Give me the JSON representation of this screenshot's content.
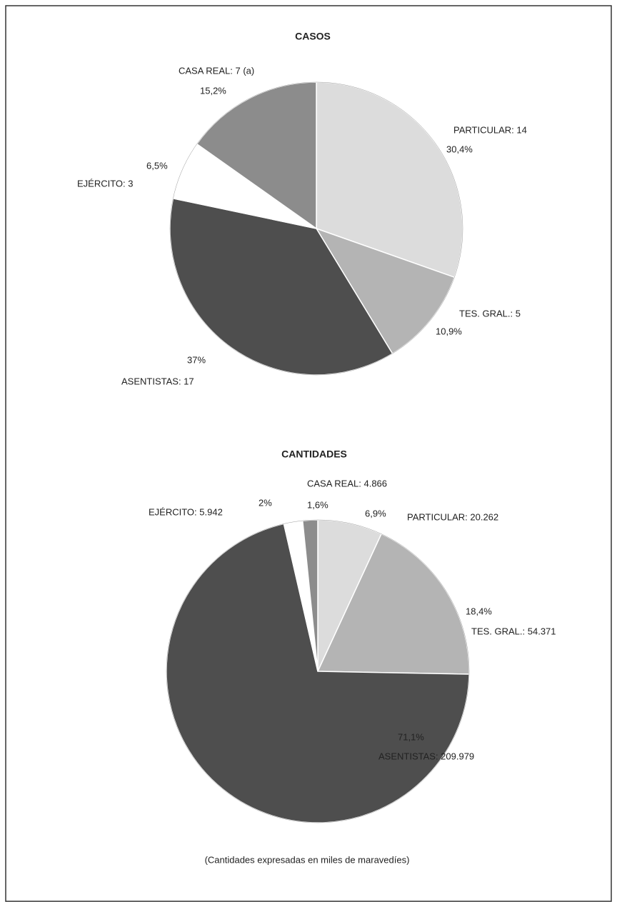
{
  "chart_data": [
    {
      "type": "pie",
      "title": "CASOS",
      "categories": [
        "PARTICULAR: 14",
        "TES. GRAL.: 5",
        "ASENTISTAS: 17",
        "EJÉRCITO: 3",
        "CASA REAL: 7 (a)"
      ],
      "values": [
        30.4,
        10.9,
        37,
        6.5,
        15.2
      ],
      "value_labels": [
        "30,4%",
        "10,9%",
        "37%",
        "6,5%",
        "15,2%"
      ],
      "colors": [
        "#dcdcdc",
        "#b4b4b4",
        "#4e4e4e",
        "#ffffff",
        "#8c8c8c"
      ]
    },
    {
      "type": "pie",
      "title": "CANTIDADES",
      "categories": [
        "PARTICULAR: 20.262",
        "TES. GRAL.: 54.371",
        "ASENTISTAS: 209.979",
        "EJÉRCITO: 5.942",
        "CASA REAL: 4.866"
      ],
      "values": [
        6.9,
        18.4,
        71.1,
        2,
        1.6
      ],
      "value_labels": [
        "6,9%",
        "18,4%",
        "71,1%",
        "2%",
        "1,6%"
      ],
      "colors": [
        "#dcdcdc",
        "#b4b4b4",
        "#4e4e4e",
        "#ffffff",
        "#8c8c8c"
      ]
    }
  ],
  "note": "(Cantidades expresadas en miles de maravedíes)"
}
